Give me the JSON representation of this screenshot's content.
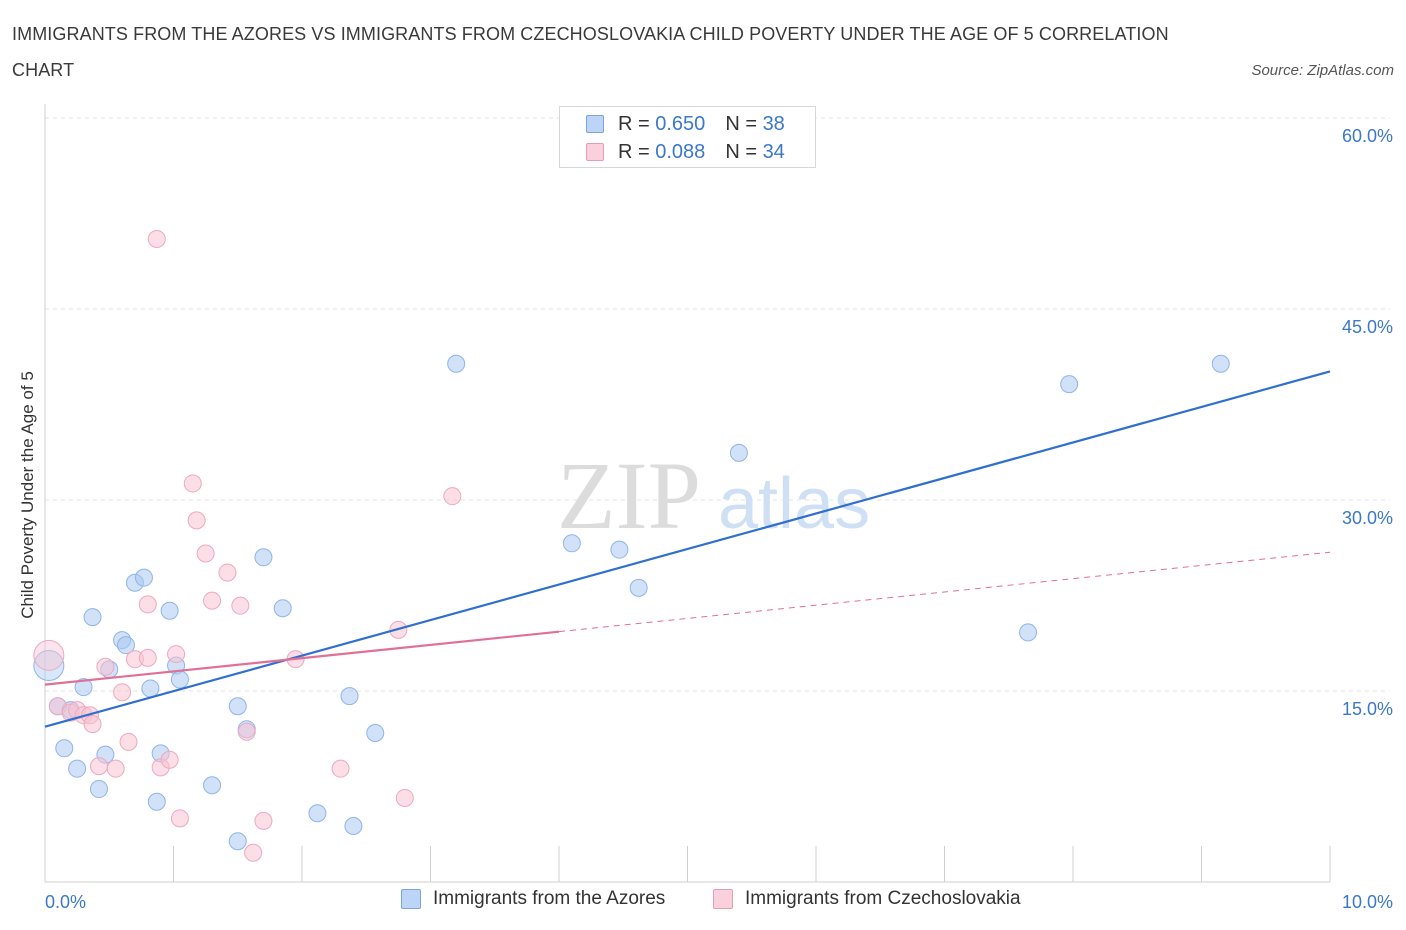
{
  "title": "IMMIGRANTS FROM THE AZORES VS IMMIGRANTS FROM CZECHOSLOVAKIA CHILD POVERTY UNDER THE AGE OF 5 CORRELATION CHART",
  "source": "Source: ZipAtlas.com",
  "watermark": {
    "zip": "ZIP",
    "atlas": "atlas"
  },
  "legend_stats": [
    {
      "r_label": "R =",
      "r_value": "0.650",
      "n_label": "N =",
      "n_value": "38",
      "color": "#a9c9f3",
      "border": "#7aa6e0"
    },
    {
      "r_label": "R =",
      "r_value": "0.088",
      "n_label": "N =",
      "n_value": "34",
      "color": "#f7c3d2",
      "border": "#e99ab4"
    }
  ],
  "chart_data": {
    "type": "scatter",
    "ylabel": "Child Poverty Under the Age of 5",
    "xlim": [
      0,
      10
    ],
    "ylim": [
      0,
      60
    ],
    "x_tick_labels": [
      "0.0%",
      "10.0%"
    ],
    "y_ticks": [
      15,
      30,
      45,
      60
    ],
    "y_tick_labels": [
      "15.0%",
      "30.0%",
      "45.0%",
      "60.0%"
    ],
    "grid": true,
    "legend_position": "bottom",
    "series": [
      {
        "name": "Immigrants from the Azores",
        "color": "#a9c9f3",
        "line_color": "#2f6fcf",
        "trend": {
          "x": [
            0,
            10
          ],
          "y": [
            12.2,
            40.1
          ],
          "dashed_from": null
        },
        "points": [
          [
            0.03,
            17.0
          ],
          [
            0.1,
            13.8
          ],
          [
            0.15,
            10.5
          ],
          [
            0.2,
            13.5
          ],
          [
            0.25,
            8.9
          ],
          [
            0.3,
            15.3
          ],
          [
            0.37,
            20.8
          ],
          [
            0.42,
            7.3
          ],
          [
            0.47,
            10.0
          ],
          [
            0.5,
            16.7
          ],
          [
            0.6,
            19.0
          ],
          [
            0.63,
            18.6
          ],
          [
            0.7,
            23.5
          ],
          [
            0.77,
            23.9
          ],
          [
            0.82,
            15.2
          ],
          [
            0.87,
            6.3
          ],
          [
            0.9,
            10.1
          ],
          [
            0.97,
            21.3
          ],
          [
            1.02,
            17.0
          ],
          [
            1.05,
            15.9
          ],
          [
            1.3,
            7.6
          ],
          [
            1.5,
            3.2
          ],
          [
            1.5,
            13.8
          ],
          [
            1.57,
            12.0
          ],
          [
            1.7,
            25.5
          ],
          [
            1.85,
            21.5
          ],
          [
            2.12,
            5.4
          ],
          [
            2.37,
            14.6
          ],
          [
            2.4,
            4.4
          ],
          [
            2.57,
            11.7
          ],
          [
            3.2,
            40.7
          ],
          [
            4.1,
            26.6
          ],
          [
            4.47,
            26.1
          ],
          [
            4.62,
            23.1
          ],
          [
            5.4,
            33.7
          ],
          [
            7.65,
            19.6
          ],
          [
            7.97,
            39.1
          ],
          [
            9.15,
            40.7
          ]
        ]
      },
      {
        "name": "Immigrants from Czechoslovakia",
        "color": "#f7c3d2",
        "line_color": "#e07096",
        "trend": {
          "x": [
            0,
            10
          ],
          "y": [
            15.5,
            25.9
          ],
          "dashed_from": 4.0
        },
        "points": [
          [
            0.03,
            17.8
          ],
          [
            0.1,
            13.8
          ],
          [
            0.2,
            13.3
          ],
          [
            0.25,
            13.5
          ],
          [
            0.3,
            13.1
          ],
          [
            0.35,
            13.1
          ],
          [
            0.37,
            12.4
          ],
          [
            0.42,
            9.1
          ],
          [
            0.47,
            16.9
          ],
          [
            0.55,
            8.9
          ],
          [
            0.6,
            14.9
          ],
          [
            0.65,
            11.0
          ],
          [
            0.7,
            17.5
          ],
          [
            0.8,
            17.6
          ],
          [
            0.8,
            21.8
          ],
          [
            0.87,
            50.5
          ],
          [
            0.9,
            9.0
          ],
          [
            0.97,
            9.6
          ],
          [
            1.02,
            17.9
          ],
          [
            1.05,
            5.0
          ],
          [
            1.15,
            31.3
          ],
          [
            1.18,
            28.4
          ],
          [
            1.25,
            25.8
          ],
          [
            1.3,
            22.1
          ],
          [
            1.42,
            24.3
          ],
          [
            1.52,
            21.7
          ],
          [
            1.57,
            11.8
          ],
          [
            1.7,
            4.8
          ],
          [
            1.95,
            17.5
          ],
          [
            1.62,
            2.3
          ],
          [
            2.3,
            8.9
          ],
          [
            2.75,
            19.8
          ],
          [
            2.8,
            6.6
          ],
          [
            3.17,
            30.3
          ]
        ]
      }
    ]
  }
}
